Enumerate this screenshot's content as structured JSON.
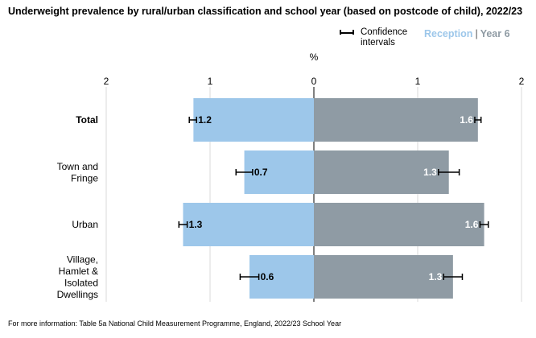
{
  "title": "Underweight prevalence by rural/urban classification and school year (based on postcode of child), 2022/23",
  "legend": {
    "ci_label": "Confidence intervals",
    "reception_label": "Reception",
    "separator": "|",
    "year6_label": "Year 6"
  },
  "footer": "For more information: Table 5a National Child Measurement Programme, England, 2022/23 School Year",
  "colors": {
    "reception": "#9dc7ea",
    "year6": "#8f9ba4",
    "grid": "#d9d9d9"
  },
  "chart_data": {
    "type": "bar",
    "orientation": "horizontal",
    "layout": "back-to-back",
    "unit_label": "%",
    "xlim": [
      -2,
      2
    ],
    "tick_values": [
      -2,
      -1,
      0,
      1,
      2
    ],
    "tick_labels": [
      "2",
      "1",
      "0",
      "1",
      "2"
    ],
    "categories": [
      "Total",
      "Town and Fringe",
      "Urban",
      "Village, Hamlet & Isolated Dwellings"
    ],
    "category_lines": [
      [
        "Total"
      ],
      [
        "Town and",
        "Fringe"
      ],
      [
        "Urban"
      ],
      [
        "Village,",
        "Hamlet &",
        "Isolated",
        "Dwellings"
      ]
    ],
    "bold_categories": [
      "Total"
    ],
    "series": [
      {
        "name": "Reception",
        "side": "left",
        "values": [
          1.16,
          0.67,
          1.26,
          0.62
        ],
        "labels": [
          "1.2",
          "0.7",
          "1.3",
          "0.6"
        ],
        "ci_low": [
          1.13,
          0.59,
          1.22,
          0.53
        ],
        "ci_high": [
          1.2,
          0.75,
          1.3,
          0.71
        ]
      },
      {
        "name": "Year 6",
        "side": "right",
        "values": [
          1.58,
          1.3,
          1.64,
          1.34
        ],
        "labels": [
          "1.6",
          "1.3",
          "1.6",
          "1.3"
        ],
        "ci_low": [
          1.55,
          1.2,
          1.6,
          1.25
        ],
        "ci_high": [
          1.61,
          1.4,
          1.68,
          1.43
        ]
      }
    ],
    "grid": true
  }
}
